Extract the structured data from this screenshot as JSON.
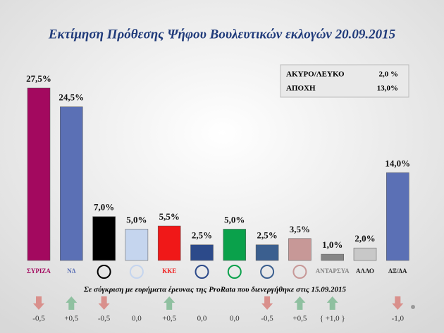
{
  "chart_data": {
    "type": "bar",
    "title": "Εκτίμηση Πρόθεσης Ψήφου Βουλευτικών εκλογών 20.09.2015",
    "categories": [
      "ΣΥΡΙΖΑ",
      "ΝΔ",
      null,
      null,
      "ΚΚΕ",
      null,
      null,
      null,
      null,
      "ΑΝΤΑΡΣΥΑ",
      "ΑΛΛΟ",
      "ΔΞ/ΔΑ"
    ],
    "values": [
      27.5,
      24.5,
      7.0,
      5.0,
      5.5,
      2.5,
      5.0,
      2.5,
      3.5,
      1.0,
      2.0,
      14.0
    ],
    "value_labels": [
      "27,5%",
      "24,5%",
      "7,0%",
      "5,0%",
      "5,5%",
      "2,5%",
      "5,0%",
      "2,5%",
      "3,5%",
      "1,0%",
      "2,0%",
      "14,0%"
    ],
    "colors": [
      "#a3095f",
      "#5b70b5",
      "#000000",
      "#c5d5ee",
      "#f01818",
      "#2c4a8a",
      "#0aa14b",
      "#3b5f8f",
      "#c79897",
      "#858585",
      "#c8c8c8",
      "#5b70b5"
    ],
    "side_table": {
      "rows": [
        [
          "ΑΚΥΡΟ/ΛΕΥΚΟ",
          "2,0 %"
        ],
        [
          "ΑΠΟΧΗ",
          "13,0%"
        ]
      ]
    },
    "comparison_note": "Σε σύγκριση με ευρήματα έρευνας της ProRata που διενεργήθηκε στις 15.09.2015",
    "changes": [
      {
        "value": -0.5,
        "label": "-0,5"
      },
      {
        "value": 0.5,
        "label": "+0,5"
      },
      {
        "value": -0.5,
        "label": "-0,5"
      },
      {
        "value": 0,
        "label": "0,0"
      },
      {
        "value": 0.5,
        "label": "+0,5"
      },
      {
        "value": 0,
        "label": "0,0"
      },
      {
        "value": 0,
        "label": "0,0"
      },
      {
        "value": -0.5,
        "label": "-0,5"
      },
      {
        "value": 0.5,
        "label": "+0,5"
      },
      {
        "value": 1.0,
        "label": "{ +1,0 }"
      },
      null,
      {
        "value": -1.0,
        "label": "-1,0"
      }
    ]
  }
}
